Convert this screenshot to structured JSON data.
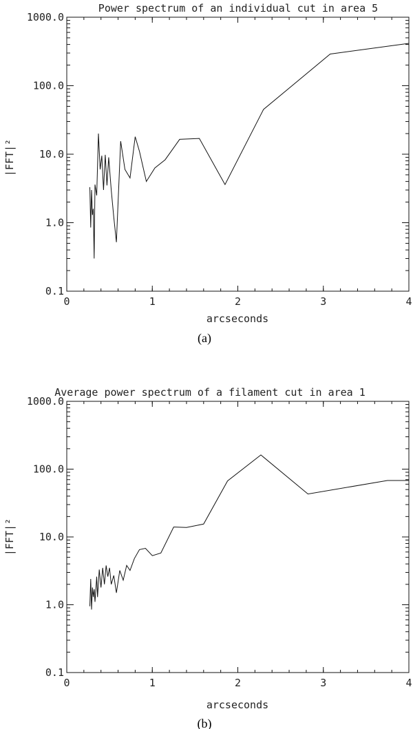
{
  "chart_data": [
    {
      "type": "line",
      "title": "Power spectrum of an individual cut in area 5",
      "xlabel": "arcseconds",
      "ylabel": "|FFT|²",
      "caption": "(a)",
      "xlim": [
        0,
        4
      ],
      "ylim": [
        0.1,
        1000
      ],
      "yscale": "log",
      "xticks": [
        0,
        1,
        2,
        3,
        4
      ],
      "xtick_labels": [
        "0",
        "1",
        "2",
        "3",
        "4"
      ],
      "yticks": [
        0.1,
        1,
        10,
        100,
        1000
      ],
      "ytick_labels": [
        "0.1",
        "1.0",
        "10.0",
        "100.0",
        "1000.0"
      ],
      "grid": false,
      "series": [
        {
          "x": [
            0.27,
            0.28,
            0.29,
            0.3,
            0.31,
            0.32,
            0.33,
            0.35,
            0.37,
            0.39,
            0.41,
            0.43,
            0.45,
            0.47,
            0.49,
            0.52,
            0.55,
            0.58,
            0.63,
            0.68,
            0.74,
            0.8,
            0.85,
            0.93,
            1.03,
            1.15,
            1.32,
            1.55,
            1.85,
            2.3,
            3.08,
            4.0
          ],
          "y": [
            3.3,
            0.85,
            3.0,
            1.3,
            1.6,
            0.3,
            3.6,
            2.5,
            20.0,
            6.0,
            9.5,
            3.0,
            9.8,
            3.5,
            9.0,
            3.0,
            1.2,
            0.52,
            15.5,
            6.0,
            4.5,
            18.0,
            11.0,
            4.0,
            6.3,
            8.3,
            16.5,
            17.0,
            3.6,
            45.0,
            290.0,
            415.0
          ]
        }
      ]
    },
    {
      "type": "line",
      "title": "Average power spectrum of a filament cut in area 1",
      "xlabel": "arcseconds",
      "ylabel": "|FFT|²",
      "caption": "(b)",
      "xlim": [
        0,
        4
      ],
      "ylim": [
        0.1,
        1000
      ],
      "yscale": "log",
      "xticks": [
        0,
        1,
        2,
        3,
        4
      ],
      "xtick_labels": [
        "0",
        "1",
        "2",
        "3",
        "4"
      ],
      "yticks": [
        0.1,
        1,
        10,
        100,
        1000
      ],
      "ytick_labels": [
        "0.1",
        "1.0",
        "10.0",
        "100.0",
        "1000.0"
      ],
      "grid": false,
      "series": [
        {
          "x": [
            0.27,
            0.28,
            0.29,
            0.3,
            0.31,
            0.32,
            0.33,
            0.35,
            0.36,
            0.38,
            0.4,
            0.42,
            0.44,
            0.46,
            0.48,
            0.5,
            0.52,
            0.55,
            0.58,
            0.62,
            0.66,
            0.7,
            0.74,
            0.79,
            0.85,
            0.92,
            1.0,
            1.1,
            1.25,
            1.4,
            1.6,
            1.88,
            2.27,
            2.82,
            3.75,
            4.0
          ],
          "y": [
            0.95,
            2.4,
            0.85,
            1.8,
            1.3,
            1.7,
            1.1,
            2.6,
            1.3,
            3.3,
            1.8,
            3.5,
            2.0,
            3.8,
            2.6,
            3.5,
            2.0,
            2.7,
            1.5,
            3.2,
            2.3,
            3.8,
            3.2,
            4.8,
            6.5,
            6.8,
            5.3,
            5.8,
            14.0,
            13.8,
            15.5,
            67.0,
            162.0,
            43.0,
            68.0,
            68.0
          ]
        }
      ]
    }
  ]
}
